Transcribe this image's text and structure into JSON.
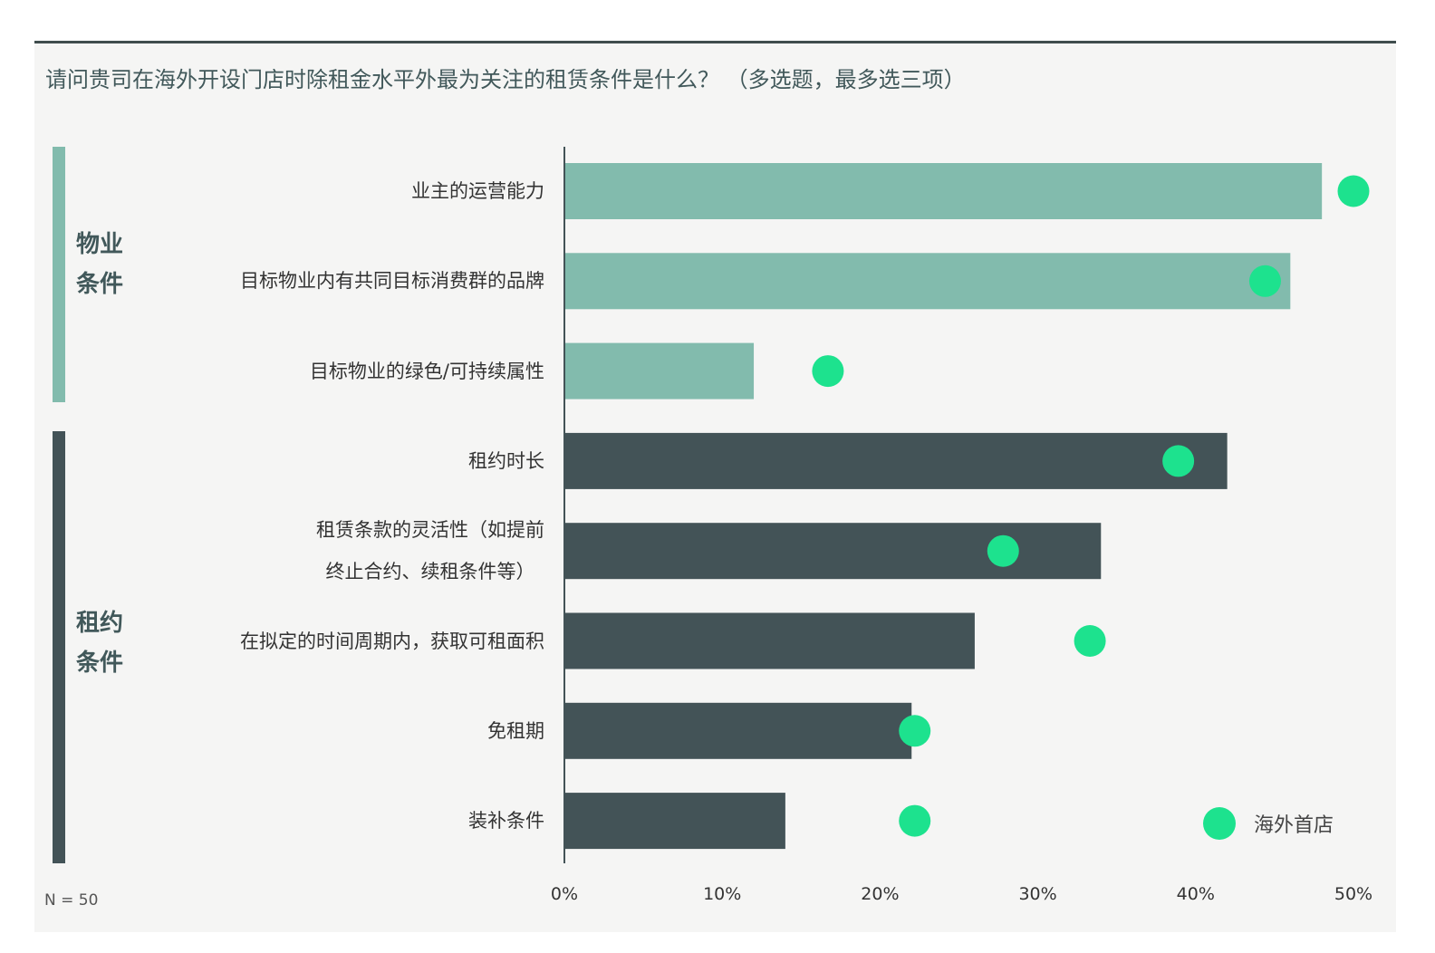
{
  "title": "请问贵司在海外开设门店时除租金水平外最为关注的租赁条件是什么？ （多选题，最多选三项）",
  "note": "N = 50",
  "colors": {
    "property": "#82bbad",
    "lease": "#435357",
    "dot": "#1de28e"
  },
  "groups": [
    {
      "label_line1": "物业",
      "label_line2": "条件",
      "color": "#82bbad"
    },
    {
      "label_line1": "租约",
      "label_line2": "条件",
      "color": "#435357"
    }
  ],
  "chart_data": {
    "type": "bar",
    "orientation": "horizontal",
    "title": "请问贵司在海外开设门店时除租金水平外最为关注的租赁条件是什么？ （多选题，最多选三项）",
    "categories": [
      "业主的运营能力",
      "目标物业内有共同目标消费群的品牌",
      "目标物业的绿色/可持续属性",
      "租约时长",
      "租赁条款的灵活性（如提前\n终止合约、续租条件等）",
      "在拟定的时间周期内，获取可租面积",
      "免租期",
      "装补条件"
    ],
    "category_group": [
      0,
      0,
      0,
      1,
      1,
      1,
      1,
      1
    ],
    "series": [
      {
        "values": [
          48,
          46,
          12,
          42,
          34,
          26,
          22,
          14
        ]
      },
      {
        "name": "海外首店",
        "marker": "dot",
        "values": [
          50,
          44.4,
          16.7,
          38.9,
          27.8,
          33.3,
          22.2,
          22.2
        ]
      }
    ],
    "xlim": [
      0,
      50
    ],
    "xticks": [
      "0%",
      "10%",
      "20%",
      "30%",
      "40%",
      "50%"
    ],
    "legend": "bottom-right",
    "grid": false
  }
}
